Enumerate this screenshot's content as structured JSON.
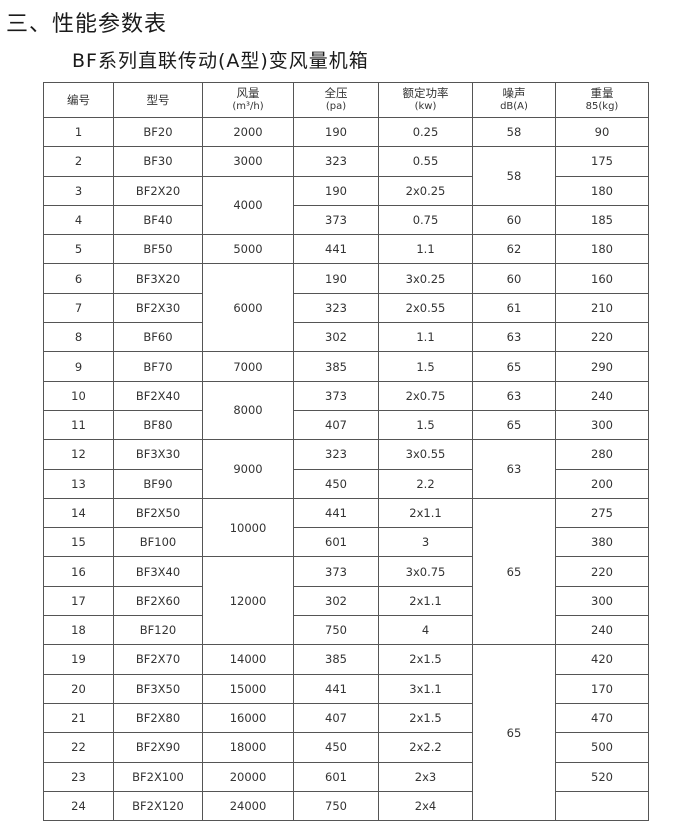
{
  "title": "三、性能参数表",
  "subtitle": "BF系列直联传动(A型)变风量机箱",
  "table": {
    "headers": [
      {
        "label": "编号",
        "unit": ""
      },
      {
        "label": "型号",
        "unit": ""
      },
      {
        "label": "风量",
        "unit": "(m³/h)"
      },
      {
        "label": "全压",
        "unit": "(pa)"
      },
      {
        "label": "额定功率",
        "unit": "(kw)"
      },
      {
        "label": "噪声",
        "unit": "dB(A)"
      },
      {
        "label": "重量",
        "unit": "85(kg)"
      }
    ],
    "ids": [
      "1",
      "2",
      "3",
      "4",
      "5",
      "6",
      "7",
      "8",
      "9",
      "10",
      "11",
      "12",
      "13",
      "14",
      "15",
      "16",
      "17",
      "18",
      "19",
      "20",
      "21",
      "22",
      "23",
      "24"
    ],
    "models": [
      "BF20",
      "BF30",
      "BF2X20",
      "BF40",
      "BF50",
      "BF3X20",
      "BF2X30",
      "BF60",
      "BF70",
      "BF2X40",
      "BF80",
      "BF3X30",
      "BF90",
      "BF2X50",
      "BF100",
      "BF3X40",
      "BF2X60",
      "BF120",
      "BF2X70",
      "BF3X50",
      "BF2X80",
      "BF2X90",
      "BF2X100",
      "BF2X120"
    ],
    "airflow_groups": [
      {
        "value": "2000",
        "rows": 1
      },
      {
        "value": "3000",
        "rows": 1
      },
      {
        "value": "4000",
        "rows": 2
      },
      {
        "value": "5000",
        "rows": 1
      },
      {
        "value": "6000",
        "rows": 3
      },
      {
        "value": "7000",
        "rows": 1
      },
      {
        "value": "8000",
        "rows": 2
      },
      {
        "value": "9000",
        "rows": 2
      },
      {
        "value": "10000",
        "rows": 2
      },
      {
        "value": "12000",
        "rows": 3
      },
      {
        "value": "14000",
        "rows": 1
      },
      {
        "value": "15000",
        "rows": 1
      },
      {
        "value": "16000",
        "rows": 1
      },
      {
        "value": "18000",
        "rows": 1
      },
      {
        "value": "20000",
        "rows": 1
      },
      {
        "value": "24000",
        "rows": 1
      }
    ],
    "pressure": [
      "190",
      "323",
      "190",
      "373",
      "441",
      "190",
      "323",
      "302",
      "385",
      "373",
      "407",
      "323",
      "450",
      "441",
      "601",
      "373",
      "302",
      "750",
      "385",
      "441",
      "407",
      "450",
      "601",
      "750"
    ],
    "power": [
      "0.25",
      "0.55",
      "2x0.25",
      "0.75",
      "1.1",
      "3x0.25",
      "2x0.55",
      "1.1",
      "1.5",
      "2x0.75",
      "1.5",
      "3x0.55",
      "2.2",
      "2x1.1",
      "3",
      "3x0.75",
      "2x1.1",
      "4",
      "2x1.5",
      "3x1.1",
      "2x1.5",
      "2x2.2",
      "2x3",
      "2x4"
    ],
    "noise_groups": [
      {
        "value": "58",
        "rows": 1
      },
      {
        "value": "58",
        "rows": 2
      },
      {
        "value": "60",
        "rows": 1
      },
      {
        "value": "62",
        "rows": 1
      },
      {
        "value": "60",
        "rows": 1
      },
      {
        "value": "61",
        "rows": 1
      },
      {
        "value": "63",
        "rows": 1
      },
      {
        "value": "65",
        "rows": 1
      },
      {
        "value": "63",
        "rows": 1
      },
      {
        "value": "65",
        "rows": 1
      },
      {
        "value": "63",
        "rows": 2
      },
      {
        "value": "65",
        "rows": 5
      },
      {
        "value": "65",
        "rows": 6
      }
    ],
    "weight": [
      "90",
      "175",
      "180",
      "185",
      "180",
      "160",
      "210",
      "220",
      "290",
      "240",
      "300",
      "280",
      "200",
      "275",
      "380",
      "220",
      "300",
      "240",
      "420",
      "170",
      "470",
      "500",
      "520",
      ""
    ]
  }
}
